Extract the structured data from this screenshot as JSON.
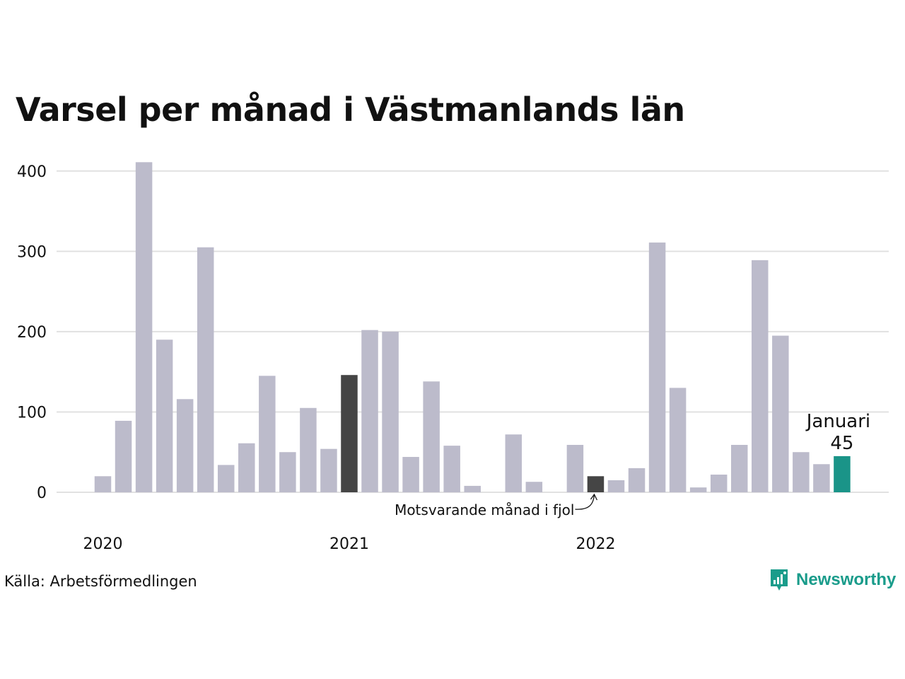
{
  "title": "Varsel per månad i Västmanlands län",
  "source": "Källa: Arbetsförmedlingen",
  "brand": "Newsworthy",
  "colors": {
    "bar_default": "#bcbbcb",
    "bar_previous_year": "#454545",
    "bar_current": "#1a9488",
    "grid": "#e1e1e1",
    "text": "#111111",
    "brand": "#1a9c8b"
  },
  "chart_data": {
    "type": "bar",
    "title": "Varsel per månad i Västmanlands län",
    "xlabel": "",
    "ylabel": "",
    "ylim": [
      0,
      420
    ],
    "yticks": [
      0,
      100,
      200,
      300,
      400
    ],
    "grid": true,
    "x": [
      "2020-01",
      "2020-02",
      "2020-03",
      "2020-04",
      "2020-05",
      "2020-06",
      "2020-07",
      "2020-08",
      "2020-09",
      "2020-10",
      "2020-11",
      "2020-12",
      "2021-01",
      "2021-02",
      "2021-03",
      "2021-04",
      "2021-05",
      "2021-06",
      "2021-07",
      "2021-08",
      "2021-09",
      "2021-10",
      "2021-11",
      "2021-12",
      "2022-01",
      "2022-02",
      "2022-03",
      "2022-04",
      "2022-05",
      "2022-06",
      "2022-07",
      "2022-08",
      "2022-09",
      "2022-10",
      "2022-11",
      "2022-12",
      "2023-01"
    ],
    "values": [
      20,
      89,
      411,
      190,
      116,
      305,
      34,
      61,
      145,
      50,
      105,
      54,
      146,
      202,
      200,
      44,
      138,
      58,
      8,
      0,
      72,
      13,
      0,
      59,
      20,
      15,
      30,
      311,
      130,
      6,
      22,
      59,
      289,
      195,
      50,
      35,
      45
    ],
    "highlight_previous_year": [
      "2021-01",
      "2022-01"
    ],
    "highlight_current": "2023-01",
    "x_tick_labels": [
      {
        "x": "2020-01",
        "label": "2020"
      },
      {
        "x": "2021-01",
        "label": "2021"
      },
      {
        "x": "2022-01",
        "label": "2022"
      }
    ],
    "annotations": {
      "current_label": "Januari",
      "current_value": "45",
      "previous_year_note": "Motsvarande månad i fjol"
    }
  }
}
